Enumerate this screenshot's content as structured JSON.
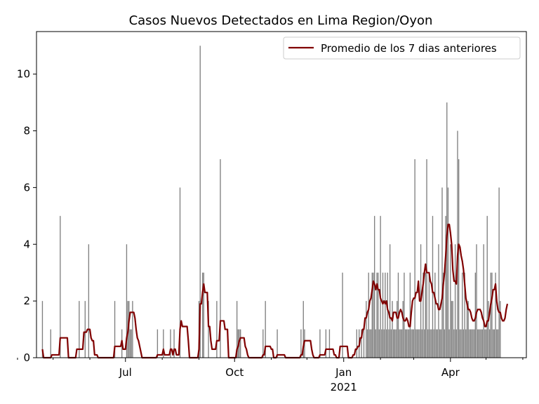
{
  "chart_data": {
    "type": "bar",
    "title": "Casos Nuevos Detectados en Lima Region/Oyon",
    "xlabel": "",
    "ylabel": "",
    "xlim": [
      "2020-04-17",
      "2021-06-04"
    ],
    "ylim": [
      0,
      11.5
    ],
    "y_ticks": [
      0,
      2,
      4,
      6,
      8,
      10
    ],
    "x_ticks": [
      {
        "date": "2020-07-01",
        "label": "Jul"
      },
      {
        "date": "2020-10-01",
        "label": "Oct"
      },
      {
        "date": "2021-01-01",
        "label": "Jan"
      },
      {
        "date": "2021-04-01",
        "label": "Apr"
      }
    ],
    "x_year_label": "2021",
    "legend": "top-right",
    "grid": false,
    "bar_color": "#808080",
    "line_color": "#800000",
    "series": [
      {
        "kind": "bar",
        "x_start": "2020-04-22",
        "values": [
          2,
          0,
          0,
          0,
          0,
          0,
          0,
          1,
          0,
          0,
          0,
          0,
          0,
          0,
          0,
          5,
          0,
          0,
          0,
          0,
          0,
          0,
          0,
          0,
          0,
          0,
          0,
          0,
          0,
          0,
          0,
          2,
          0,
          0,
          0,
          0,
          2,
          0,
          0,
          4,
          0,
          0,
          0,
          0,
          0,
          0,
          0,
          0,
          0,
          0,
          0,
          0,
          0,
          0,
          0,
          0,
          0,
          0,
          0,
          0,
          0,
          2,
          0,
          0,
          0,
          0,
          0,
          1,
          0,
          0,
          0,
          4,
          2,
          2,
          1,
          1,
          2,
          0,
          0,
          0,
          0,
          0,
          0,
          0,
          0,
          0,
          0,
          0,
          0,
          0,
          0,
          0,
          0,
          0,
          0,
          0,
          0,
          1,
          0,
          0,
          0,
          0,
          1,
          0,
          0,
          0,
          0,
          0,
          1,
          0,
          0,
          1,
          0,
          0,
          0,
          0,
          6,
          0,
          0,
          0,
          0,
          0,
          0,
          0,
          0,
          0,
          0,
          0,
          0,
          0,
          0,
          0,
          2,
          11,
          0,
          3,
          3,
          0,
          0,
          0,
          2,
          0,
          0,
          0,
          0,
          0,
          0,
          2,
          0,
          0,
          7,
          0,
          0,
          0,
          0,
          0,
          0,
          0,
          0,
          0,
          0,
          0,
          0,
          0,
          2,
          1,
          1,
          1,
          0,
          0,
          0,
          0,
          0,
          0,
          0,
          0,
          0,
          0,
          0,
          0,
          0,
          0,
          0,
          0,
          0,
          0,
          1,
          0,
          2,
          0,
          0,
          0,
          0,
          0,
          0,
          0,
          0,
          0,
          1,
          0,
          0,
          0,
          0,
          0,
          0,
          0,
          0,
          0,
          0,
          0,
          0,
          0,
          0,
          0,
          0,
          0,
          0,
          0,
          1,
          0,
          2,
          1,
          0,
          0,
          0,
          0,
          0,
          0,
          0,
          0,
          0,
          0,
          0,
          0,
          1,
          0,
          0,
          0,
          0,
          1,
          0,
          0,
          1,
          0,
          0,
          0,
          0,
          0,
          0,
          0,
          0,
          0,
          0,
          3,
          0,
          0,
          0,
          0,
          0,
          0,
          0,
          0,
          0,
          0,
          0,
          1,
          0,
          1,
          0,
          1,
          0,
          1,
          0,
          2,
          1,
          3,
          1,
          1,
          3,
          3,
          5,
          1,
          3,
          3,
          1,
          5,
          1,
          3,
          1,
          3,
          1,
          3,
          1,
          4,
          1,
          2,
          1,
          1,
          1,
          2,
          3,
          1,
          1,
          1,
          2,
          3,
          1,
          1,
          1,
          1,
          3,
          1,
          1,
          1,
          7,
          1,
          1,
          1,
          1,
          4,
          1,
          3,
          1,
          3,
          7,
          1,
          3,
          1,
          1,
          5,
          1,
          3,
          1,
          1,
          4,
          1,
          1,
          6,
          3,
          1,
          5,
          9,
          6,
          1,
          4,
          2,
          2,
          1,
          4,
          1,
          8,
          7,
          1,
          1,
          3,
          1,
          3,
          1,
          2,
          2,
          1,
          1,
          1,
          1,
          1,
          3,
          4,
          1,
          1,
          1,
          1,
          1,
          4,
          1,
          1,
          5,
          2,
          1,
          3,
          3,
          1,
          1,
          3,
          1,
          1,
          6,
          2
        ]
      },
      {
        "kind": "line",
        "name": "Promedio de los 7 dias anteriores",
        "x_start": "2020-04-22",
        "values": [
          0.3,
          0.0,
          0.0,
          0.0,
          0.0,
          0.0,
          0.0,
          0.0,
          0.1,
          0.1,
          0.1,
          0.1,
          0.1,
          0.1,
          0.1,
          0.7,
          0.7,
          0.7,
          0.7,
          0.7,
          0.7,
          0.7,
          0.0,
          0.0,
          0.0,
          0.0,
          0.0,
          0.0,
          0.0,
          0.3,
          0.3,
          0.3,
          0.3,
          0.3,
          0.3,
          0.9,
          0.9,
          0.9,
          1.0,
          1.0,
          1.0,
          0.7,
          0.6,
          0.6,
          0.1,
          0.1,
          0.1,
          0.0,
          0.0,
          0.0,
          0.0,
          0.0,
          0.0,
          0.0,
          0.0,
          0.0,
          0.0,
          0.0,
          0.0,
          0.0,
          0.0,
          0.4,
          0.4,
          0.4,
          0.4,
          0.4,
          0.4,
          0.6,
          0.3,
          0.3,
          0.3,
          0.7,
          0.9,
          1.3,
          1.6,
          1.6,
          1.6,
          1.6,
          1.4,
          1.0,
          0.7,
          0.6,
          0.4,
          0.2,
          0.0,
          0.0,
          0.0,
          0.0,
          0.0,
          0.0,
          0.0,
          0.0,
          0.0,
          0.0,
          0.0,
          0.0,
          0.0,
          0.1,
          0.1,
          0.1,
          0.1,
          0.1,
          0.3,
          0.1,
          0.1,
          0.1,
          0.1,
          0.1,
          0.3,
          0.3,
          0.1,
          0.3,
          0.3,
          0.1,
          0.1,
          0.1,
          1.0,
          1.3,
          1.1,
          1.1,
          1.1,
          1.1,
          1.1,
          0.6,
          0.0,
          0.0,
          0.0,
          0.0,
          0.0,
          0.0,
          0.0,
          0.0,
          0.3,
          1.9,
          1.9,
          2.3,
          2.6,
          2.3,
          2.3,
          2.3,
          1.1,
          1.1,
          0.6,
          0.3,
          0.3,
          0.3,
          0.3,
          0.6,
          0.6,
          0.6,
          1.3,
          1.3,
          1.3,
          1.3,
          1.0,
          1.0,
          1.0,
          0.0,
          0.0,
          0.0,
          0.0,
          0.0,
          0.0,
          0.0,
          0.3,
          0.4,
          0.6,
          0.7,
          0.7,
          0.7,
          0.7,
          0.4,
          0.3,
          0.1,
          0.0,
          0.0,
          0.0,
          0.0,
          0.0,
          0.0,
          0.0,
          0.0,
          0.0,
          0.0,
          0.0,
          0.0,
          0.1,
          0.1,
          0.4,
          0.4,
          0.4,
          0.4,
          0.4,
          0.3,
          0.3,
          0.0,
          0.0,
          0.0,
          0.1,
          0.1,
          0.1,
          0.1,
          0.1,
          0.1,
          0.1,
          0.0,
          0.0,
          0.0,
          0.0,
          0.0,
          0.0,
          0.0,
          0.0,
          0.0,
          0.0,
          0.0,
          0.0,
          0.0,
          0.1,
          0.1,
          0.4,
          0.6,
          0.6,
          0.6,
          0.6,
          0.6,
          0.6,
          0.3,
          0.1,
          0.0,
          0.0,
          0.0,
          0.0,
          0.0,
          0.1,
          0.1,
          0.1,
          0.1,
          0.1,
          0.3,
          0.3,
          0.3,
          0.3,
          0.3,
          0.3,
          0.3,
          0.1,
          0.1,
          0.0,
          0.0,
          0.0,
          0.4,
          0.4,
          0.4,
          0.4,
          0.4,
          0.4,
          0.4,
          0.0,
          0.0,
          0.0,
          0.0,
          0.1,
          0.1,
          0.3,
          0.3,
          0.4,
          0.4,
          0.7,
          0.7,
          1.0,
          1.0,
          1.4,
          1.4,
          1.6,
          1.7,
          2.0,
          2.1,
          2.4,
          2.7,
          2.6,
          2.4,
          2.6,
          2.4,
          2.4,
          2.1,
          2.0,
          1.9,
          2.0,
          1.9,
          2.0,
          1.7,
          1.6,
          1.4,
          1.4,
          1.3,
          1.6,
          1.6,
          1.6,
          1.4,
          1.4,
          1.6,
          1.7,
          1.6,
          1.4,
          1.3,
          1.3,
          1.4,
          1.3,
          1.1,
          1.1,
          1.6,
          2.0,
          2.1,
          2.1,
          2.3,
          2.3,
          2.7,
          2.0,
          2.0,
          2.3,
          2.6,
          3.0,
          3.3,
          3.0,
          3.0,
          3.0,
          2.7,
          2.6,
          2.3,
          2.3,
          2.1,
          1.9,
          1.9,
          1.7,
          1.7,
          1.9,
          2.1,
          2.6,
          3.0,
          3.6,
          4.3,
          4.7,
          4.7,
          4.4,
          4.0,
          3.1,
          2.7,
          2.7,
          2.6,
          3.6,
          4.0,
          3.9,
          3.6,
          3.4,
          3.1,
          2.6,
          2.1,
          1.9,
          1.7,
          1.7,
          1.6,
          1.4,
          1.3,
          1.3,
          1.4,
          1.6,
          1.7,
          1.7,
          1.7,
          1.6,
          1.4,
          1.3,
          1.1,
          1.1,
          1.3,
          1.3,
          1.6,
          1.9,
          2.1,
          2.4,
          2.4,
          2.6,
          2.0,
          1.7,
          1.6,
          1.6,
          1.4,
          1.3,
          1.3,
          1.4,
          1.7,
          1.9
        ]
      }
    ]
  }
}
